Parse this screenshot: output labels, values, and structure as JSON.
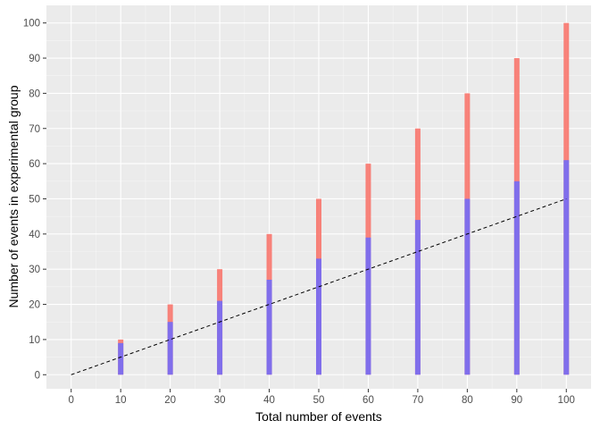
{
  "chart_data": {
    "type": "bar",
    "title": "",
    "xlabel": "Total number of events",
    "ylabel": "Number of events in experimental group",
    "x_ticks": [
      0,
      10,
      20,
      30,
      40,
      50,
      60,
      70,
      80,
      90,
      100
    ],
    "y_ticks": [
      0,
      10,
      20,
      30,
      40,
      50,
      60,
      70,
      80,
      90,
      100
    ],
    "xlim": [
      -5,
      105
    ],
    "ylim": [
      -4,
      105
    ],
    "grid": true,
    "x": [
      10,
      20,
      30,
      40,
      50,
      60,
      70,
      80,
      90,
      100
    ],
    "series": [
      {
        "color": "#F8766D",
        "opacity": 0.9,
        "values": [
          10,
          20,
          30,
          40,
          50,
          60,
          70,
          80,
          90,
          100
        ]
      },
      {
        "color": "#6B6BFF",
        "opacity": 0.85,
        "values": [
          9,
          15,
          21,
          27,
          33,
          39,
          44,
          50,
          55,
          61
        ]
      }
    ],
    "reference_line": {
      "style": "dashed",
      "color": "#000000",
      "points": [
        [
          0,
          0
        ],
        [
          100,
          50
        ]
      ]
    },
    "colors": {
      "panel_background": "#EBEBEB",
      "grid_major": "#FFFFFF",
      "tick_label": "#4D4D4D",
      "axis_title": "#000000"
    }
  }
}
